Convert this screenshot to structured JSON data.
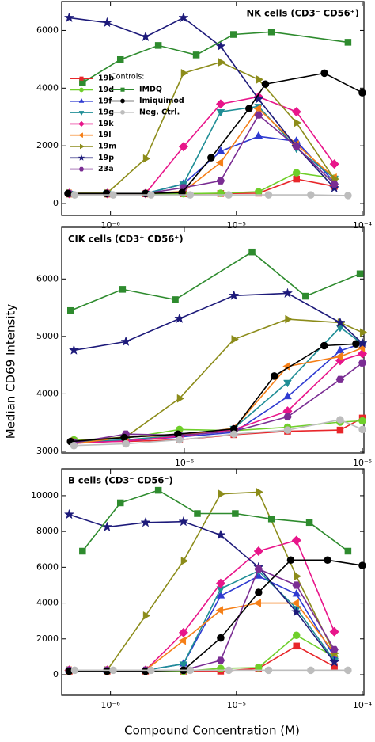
{
  "chart_data": [
    {
      "type": "line",
      "title": "NK cells (CD3⁻ CD56⁺)",
      "title_loc": "upper right",
      "xscale": "log",
      "xlim": [
        4.1e-07,
        0.000103
      ],
      "ylim": [
        -410,
        7000
      ],
      "xticks": [
        {
          "value": 1e-06,
          "label": "10⁻⁶"
        },
        {
          "value": 1e-05,
          "label": "10⁻⁵"
        },
        {
          "value": 0.0001,
          "label": "10⁻⁴"
        }
      ],
      "yticks": [
        0,
        2000,
        4000,
        6000
      ],
      "legend_loc": "center left",
      "controls_title": "Controls:",
      "x": [
        4.7e-07,
        9.4e-07,
        1.9e-06,
        3.8e-06,
        7.5e-06,
        1.5e-05,
        3e-05,
        6e-05
      ],
      "series": [
        {
          "name": "19b",
          "color": "#e8262a",
          "marker": "square",
          "values": [
            330,
            330,
            340,
            340,
            350,
            360,
            850,
            600
          ]
        },
        {
          "name": "19d",
          "color": "#6fcf2a",
          "marker": "circle",
          "values": [
            330,
            330,
            340,
            340,
            360,
            410,
            1070,
            880
          ]
        },
        {
          "name": "19f",
          "color": "#2f3bd1",
          "marker": "triangle-up",
          "values": [
            350,
            350,
            350,
            680,
            1810,
            2330,
            2160,
            740
          ]
        },
        {
          "name": "19g",
          "color": "#1f8e96",
          "marker": "triangle-down",
          "values": [
            350,
            350,
            350,
            680,
            3180,
            3370,
            1920,
            880
          ]
        },
        {
          "name": "19k",
          "color": "#e8158a",
          "marker": "diamond",
          "values": [
            350,
            350,
            350,
            1970,
            3450,
            3700,
            3180,
            1370
          ]
        },
        {
          "name": "19l",
          "color": "#f57f17",
          "marker": "triangle-left",
          "values": [
            350,
            350,
            350,
            420,
            1420,
            3290,
            2050,
            900
          ]
        },
        {
          "name": "19m",
          "color": "#8c8c1a",
          "marker": "triangle-right",
          "values": [
            360,
            360,
            1560,
            4520,
            4900,
            4300,
            2800,
            850
          ]
        },
        {
          "name": "19p",
          "color": "#1d1a7a",
          "marker": "star",
          "values": [
            6440,
            6270,
            5780,
            6440,
            5450,
            3620,
            1970,
            540
          ]
        },
        {
          "name": "23a",
          "color": "#7a2d93",
          "marker": "hexagon",
          "values": [
            350,
            350,
            350,
            550,
            790,
            3070,
            1970,
            680
          ]
        }
      ],
      "control_series": [
        {
          "name": "IMDQ",
          "color": "#2e8b2e",
          "marker": "square",
          "x": [
            6e-07,
            1.2e-06,
            2.4e-06,
            4.8e-06,
            9.5e-06,
            1.9e-05,
            7.7e-05
          ],
          "values": [
            4190,
            4990,
            5480,
            5150,
            5860,
            5950,
            5590
          ]
        },
        {
          "name": "Imiquimod",
          "color": "#000000",
          "marker": "circle",
          "x": [
            4.6e-07,
            9.3e-07,
            1.9e-06,
            3.7e-06,
            6.3e-06,
            1.26e-05,
            1.7e-05,
            5e-05,
            0.0001
          ],
          "values": [
            350,
            350,
            350,
            380,
            1590,
            3290,
            4140,
            4520,
            3840
          ]
        },
        {
          "name": "Neg. Ctrl.",
          "color": "#bdbdbd",
          "marker": "circle",
          "x": [
            5.2e-07,
            1.05e-06,
            2.1e-06,
            4.3e-06,
            8.7e-06,
            1.8e-05,
            3.9e-05,
            7.7e-05
          ],
          "values": [
            300,
            300,
            300,
            300,
            300,
            300,
            300,
            280
          ]
        }
      ]
    },
    {
      "type": "line",
      "title": "CIK cells (CD3⁺ CD56⁺)",
      "title_loc": "upper left",
      "xscale": "log",
      "y_label": "Median CD69 Intensity",
      "xlim": [
        2.05e-07,
        1.02e-05
      ],
      "ylim": [
        2972,
        6900
      ],
      "xticks": [
        {
          "value": 1e-06,
          "label": "10⁻⁶"
        },
        {
          "value": 1e-05,
          "label": "10⁻⁵"
        }
      ],
      "yticks": [
        3000,
        4000,
        5000,
        6000
      ],
      "x": [
        2.4e-07,
        4.7e-07,
        9.4e-07,
        1.9e-06,
        3.8e-06,
        7.5e-06,
        1e-05
      ],
      "series": [
        {
          "color": "#e8262a",
          "marker": "square",
          "values": [
            3180,
            3170,
            3200,
            3290,
            3350,
            3370,
            3580
          ]
        },
        {
          "color": "#6fcf2a",
          "marker": "circle",
          "values": [
            3200,
            3230,
            3380,
            3360,
            3420,
            3510,
            3530
          ]
        },
        {
          "color": "#2f3bd1",
          "marker": "triangle-up",
          "values": [
            3150,
            3180,
            3250,
            3330,
            3950,
            4750,
            4880
          ]
        },
        {
          "color": "#1f8e96",
          "marker": "triangle-down",
          "values": [
            3170,
            3200,
            3280,
            3400,
            4200,
            5160,
            4870
          ]
        },
        {
          "color": "#e8158a",
          "marker": "diamond",
          "values": [
            3140,
            3180,
            3260,
            3380,
            3700,
            4580,
            4700
          ]
        },
        {
          "color": "#f57f17",
          "marker": "triangle-left",
          "values": [
            3130,
            3250,
            3280,
            3400,
            4480,
            4650,
            4800
          ]
        },
        {
          "color": "#8c8c1a",
          "marker": "triangle-right",
          "values": [
            3180,
            3250,
            3920,
            4950,
            5300,
            5240,
            5070
          ]
        },
        {
          "color": "#1d1a7a",
          "marker": "star",
          "values": [
            4760,
            4910,
            5310,
            5710,
            5750,
            5240,
            4880
          ]
        },
        {
          "color": "#7a2d93",
          "marker": "hexagon",
          "values": [
            3150,
            3300,
            3280,
            3350,
            3600,
            4250,
            4540
          ]
        }
      ],
      "control_series": [
        {
          "color": "#2e8b2e",
          "marker": "square",
          "x": [
            2.3e-07,
            4.5e-07,
            8.9e-07,
            2.4e-06,
            4.8e-06,
            9.7e-06
          ],
          "values": [
            5450,
            5820,
            5640,
            6470,
            5700,
            6090
          ]
        },
        {
          "color": "#000000",
          "marker": "circle",
          "x": [
            2.3e-07,
            4.6e-07,
            9.2e-07,
            1.9e-06,
            3.2e-06,
            6.1e-06,
            9.2e-06
          ],
          "values": [
            3170,
            3240,
            3300,
            3390,
            4310,
            4840,
            4870
          ]
        },
        {
          "color": "#bdbdbd",
          "marker": "circle",
          "values": [
            3100,
            3130,
            3200,
            3300,
            3370,
            3550,
            3380
          ]
        }
      ]
    },
    {
      "type": "line",
      "title": "B cells (CD3⁻ CD56⁻)",
      "title_loc": "upper left",
      "xscale": "log",
      "x_label": "Compound Concentration (M)",
      "xlim": [
        4.1e-07,
        0.000103
      ],
      "ylim": [
        -1150,
        11500
      ],
      "xticks": [
        {
          "value": 1e-06,
          "label": "10⁻⁶"
        },
        {
          "value": 1e-05,
          "label": "10⁻⁵"
        },
        {
          "value": 0.0001,
          "label": "10⁻⁴"
        }
      ],
      "yticks": [
        0,
        2000,
        4000,
        6000,
        8000,
        10000
      ],
      "x": [
        4.7e-07,
        9.4e-07,
        1.9e-06,
        3.8e-06,
        7.5e-06,
        1.5e-05,
        3e-05,
        6e-05
      ],
      "series": [
        {
          "color": "#e8262a",
          "marker": "square",
          "values": [
            200,
            200,
            200,
            200,
            200,
            350,
            1600,
            450
          ]
        },
        {
          "color": "#6fcf2a",
          "marker": "circle",
          "values": [
            200,
            200,
            200,
            200,
            350,
            400,
            2200,
            1000
          ]
        },
        {
          "color": "#2f3bd1",
          "marker": "triangle-up",
          "values": [
            250,
            250,
            250,
            600,
            4400,
            5500,
            4500,
            1000
          ]
        },
        {
          "color": "#1f8e96",
          "marker": "triangle-down",
          "values": [
            250,
            250,
            250,
            600,
            4800,
            5800,
            3700,
            800
          ]
        },
        {
          "color": "#e8158a",
          "marker": "diamond",
          "values": [
            250,
            250,
            250,
            2350,
            5100,
            6900,
            7500,
            2400
          ]
        },
        {
          "color": "#f57f17",
          "marker": "triangle-left",
          "values": [
            250,
            250,
            250,
            1900,
            3600,
            4000,
            4000,
            1200
          ]
        },
        {
          "color": "#8c8c1a",
          "marker": "triangle-right",
          "values": [
            250,
            250,
            3300,
            6350,
            10100,
            10200,
            5500,
            1200
          ]
        },
        {
          "color": "#1d1a7a",
          "marker": "star",
          "values": [
            8950,
            8250,
            8500,
            8550,
            7800,
            6000,
            3500,
            700
          ]
        },
        {
          "color": "#7a2d93",
          "marker": "hexagon",
          "values": [
            250,
            250,
            250,
            250,
            800,
            5900,
            5000,
            1400
          ]
        }
      ],
      "control_series": [
        {
          "color": "#2e8b2e",
          "marker": "square",
          "x": [
            6e-07,
            1.2e-06,
            2.4e-06,
            4.9e-06,
            9.8e-06,
            1.9e-05,
            3.8e-05,
            7.7e-05
          ],
          "values": [
            6900,
            9600,
            10300,
            9000,
            9000,
            8700,
            8500,
            6900
          ]
        },
        {
          "color": "#000000",
          "marker": "circle",
          "x": [
            4.7e-07,
            9.4e-07,
            1.9e-06,
            3.8e-06,
            7.5e-06,
            1.5e-05,
            2.7e-05,
            5.3e-05,
            0.0001
          ],
          "values": [
            200,
            200,
            200,
            250,
            2050,
            4600,
            6400,
            6400,
            6100
          ]
        },
        {
          "color": "#bdbdbd",
          "marker": "circle",
          "x": [
            5.2e-07,
            1.05e-06,
            2.1e-06,
            4.3e-06,
            8.7e-06,
            1.8e-05,
            3.9e-05,
            7.7e-05
          ],
          "values": [
            250,
            250,
            250,
            250,
            250,
            250,
            250,
            250
          ]
        }
      ]
    }
  ]
}
